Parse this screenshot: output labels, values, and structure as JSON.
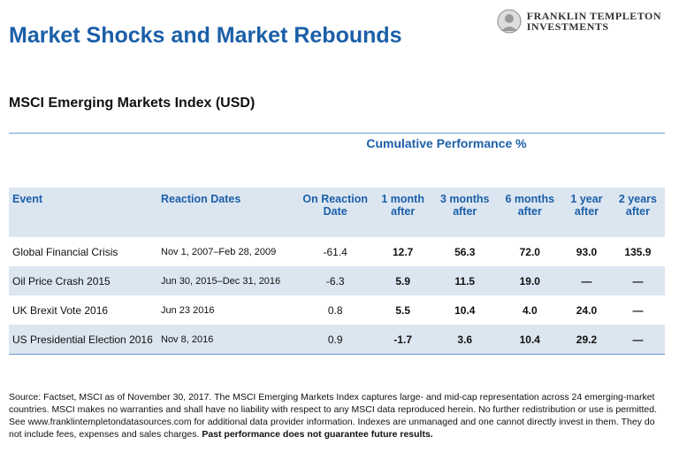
{
  "header": {
    "title": "Market Shocks and Market Rebounds",
    "logo": [
      "FRANKLIN TEMPLETON",
      "INVESTMENTS"
    ]
  },
  "subtitle": "MSCI Emerging Markets Index (USD)",
  "table": {
    "group_header": "Cumulative Performance %",
    "columns": [
      "Event",
      "Reaction Dates",
      "On Reaction Date",
      "1 month after",
      "3 months after",
      "6 months after",
      "1 year after",
      "2 years after"
    ],
    "rows": [
      [
        "Global Financial Crisis",
        "Nov 1, 2007–Feb 28, 2009",
        "-61.4",
        "12.7",
        "56.3",
        "72.0",
        "93.0",
        "135.9"
      ],
      [
        "Oil Price Crash 2015",
        "Jun 30, 2015–Dec 31, 2016",
        "-6.3",
        "5.9",
        "11.5",
        "19.0",
        "—",
        "—"
      ],
      [
        "UK Brexit Vote 2016",
        "Jun 23 2016",
        "0.8",
        "5.5",
        "10.4",
        "4.0",
        "24.0",
        "—"
      ],
      [
        "US Presidential Election 2016",
        "Nov 8, 2016",
        "0.9",
        "-1.7",
        "3.6",
        "10.4",
        "29.2",
        "—"
      ]
    ]
  },
  "footnote": {
    "text": "Source: Factset, MSCI as of November 30, 2017. The MSCI Emerging Markets Index captures large- and mid-cap representation across 24 emerging-market countries. MSCI makes no warranties and shall have no liability with respect to any MSCI data reproduced herein. No further redistribution or use is permitted. See www.franklintempletondatasources.com for additional data provider information. Indexes are unmanaged and one cannot directly invest in them. They do not include fees, expenses and sales charges.",
    "bold": "Past performance does not guarantee future results."
  }
}
